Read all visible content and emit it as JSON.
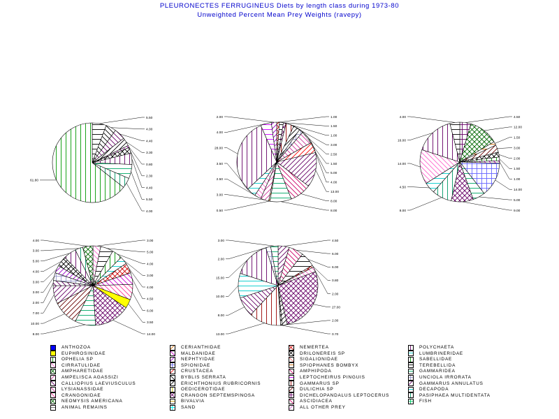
{
  "header": {
    "title": "PLEURONECTES FERRUGINEUS Diets by length class during 1973-80",
    "subtitle": "Unweighted Percent Mean Prey Weights (ravepy)"
  },
  "chart_data": {
    "type": "pie",
    "pies": [
      {
        "label": "",
        "slices": [
          {
            "cat": 15,
            "value": 5.5
          },
          {
            "cat": 21,
            "value": 4.0
          },
          {
            "cat": 24,
            "value": 4.4
          },
          {
            "cat": 25,
            "value": 3.3
          },
          {
            "cat": 5,
            "value": 0.8
          },
          {
            "cat": 6,
            "value": 2.3
          },
          {
            "cat": 3,
            "value": 4.4
          },
          {
            "cat": 19,
            "value": 5.5
          },
          {
            "cat": 35,
            "value": 4.0
          },
          {
            "cat": 8,
            "value": 61.8
          }
        ]
      },
      {
        "label": "",
        "slices": [
          {
            "cat": 2,
            "value": 1.0
          },
          {
            "cat": 15,
            "value": 1.5
          },
          {
            "cat": 33,
            "value": 1.0
          },
          {
            "cat": 26,
            "value": 3.0
          },
          {
            "cat": 25,
            "value": 2.5
          },
          {
            "cat": 23,
            "value": 1.5
          },
          {
            "cat": 28,
            "value": 5.0
          },
          {
            "cat": 17,
            "value": 4.0
          },
          {
            "cat": 27,
            "value": 13.0
          },
          {
            "cat": 18,
            "value": 8.0
          },
          {
            "cat": 19,
            "value": 8.0
          },
          {
            "cat": 1,
            "value": 0.5
          },
          {
            "cat": 20,
            "value": 3.0
          },
          {
            "cat": 12,
            "value": 2.5
          },
          {
            "cat": 31,
            "value": 3.5
          },
          {
            "cat": 3,
            "value": 28.0
          },
          {
            "cat": 22,
            "value": 4.0
          },
          {
            "cat": 9,
            "value": 2.0
          }
        ]
      },
      {
        "label": "",
        "slices": [
          {
            "cat": 34,
            "value": 4.5
          },
          {
            "cat": 16,
            "value": 12.0
          },
          {
            "cat": 14,
            "value": 1.5
          },
          {
            "cat": 30,
            "value": 3.0
          },
          {
            "cat": 6,
            "value": 2.0
          },
          {
            "cat": 11,
            "value": 1.5
          },
          {
            "cat": 5,
            "value": 1.0
          },
          {
            "cat": 13,
            "value": 14.0
          },
          {
            "cat": 19,
            "value": 5.0
          },
          {
            "cat": 33,
            "value": 9.0
          },
          {
            "cat": 35,
            "value": 8.0
          },
          {
            "cat": 31,
            "value": 4.5
          },
          {
            "cat": 12,
            "value": 14.0
          },
          {
            "cat": 3,
            "value": 16.0
          },
          {
            "cat": 15,
            "value": 4.0
          }
        ]
      },
      {
        "label": "",
        "slices": [
          {
            "cat": 12,
            "value": 3.0
          },
          {
            "cat": 15,
            "value": 5.0
          },
          {
            "cat": 11,
            "value": 4.0
          },
          {
            "cat": 31,
            "value": 3.0
          },
          {
            "cat": 2,
            "value": 4.0
          },
          {
            "cat": 5,
            "value": 4.5
          },
          {
            "cat": 32,
            "value": 6.0
          },
          {
            "cat": 4,
            "value": 3.5
          },
          {
            "cat": 33,
            "value": 14.0
          },
          {
            "cat": 19,
            "value": 8.0
          },
          {
            "cat": 30,
            "value": 10.0
          },
          {
            "cat": 27,
            "value": 7.0
          },
          {
            "cat": 24,
            "value": 2.0
          },
          {
            "cat": 23,
            "value": 3.0
          },
          {
            "cat": 9,
            "value": 3.0
          },
          {
            "cat": 6,
            "value": 4.0
          },
          {
            "cat": 3,
            "value": 5.0
          },
          {
            "cat": 35,
            "value": 3.0
          },
          {
            "cat": 16,
            "value": 4.0
          }
        ]
      },
      {
        "label": "",
        "slices": [
          {
            "cat": 27,
            "value": 4.5
          },
          {
            "cat": 18,
            "value": 6.0
          },
          {
            "cat": 15,
            "value": 6.0
          },
          {
            "cat": 2,
            "value": 0.8
          },
          {
            "cat": 12,
            "value": 2.0
          },
          {
            "cat": 33,
            "value": 27.0
          },
          {
            "cat": 25,
            "value": 2.0
          },
          {
            "cat": 6,
            "value": 0.7
          },
          {
            "cat": 26,
            "value": 13.0
          },
          {
            "cat": 24,
            "value": 8.0
          },
          {
            "cat": 7,
            "value": 10.0
          },
          {
            "cat": 3,
            "value": 15.0
          },
          {
            "cat": 23,
            "value": 2.0
          },
          {
            "cat": 19,
            "value": 3.0
          }
        ]
      }
    ],
    "legend": [
      "ANTHOZOA",
      "CERIANTHIDAE",
      "NEMERTEA",
      "POLYCHAETA",
      "EUPHROSINIDAE",
      "MALDANIDAE",
      "DRILONEREIS SP",
      "LUMBRINERIDAE",
      "OPHELIA SP",
      "NEPHTYIDAE",
      "SIGALIONIDAE",
      "SABELLIDAE",
      "CIRRATULIDAE",
      "SPIONIDAE",
      "SPIOPHANES BOMBYX",
      "TEREBELLIDA",
      "AMPHARETIDAE",
      "CRUSTACEA",
      "AMPHIPODA",
      "GAMMARIDEA",
      "AMPELISCA AGASSIZI",
      "BYBLIS SERRATA",
      "LEPTOCHEIRUS PINGUIS",
      "UNCIOLA IRRORATA",
      "CALLIOPIUS LAEVIUSCULUS",
      "ERICHTHONIUS RUBRICORNIS",
      "GAMMARUS SP",
      "GAMMARUS ANNULATUS",
      "LYSIANASSIDAE",
      "OEDICEROTIDAE",
      "DULICHIA SP",
      "DECAPODA",
      "CRANGONIDAE",
      "CRANGON SEPTEMSPINOSA",
      "DICHELOPANDALUS LEPTOCERUS",
      "PASIPHAEA MULTIDENTATA",
      "NEOMYSIS AMERICANA",
      "BIVALVIA",
      "ASCIDIACEA",
      "FISH",
      "ANIMAL REMAINS",
      "SAND",
      "ALL OTHER PREY"
    ],
    "legend_colors": [
      "#0000ff",
      "#cc6600",
      "#cc0000",
      "#660066",
      "#ffff00",
      "#cc00cc",
      "#000000",
      "#00cccc",
      "#009900",
      "#9900cc",
      "#ff6666",
      "#009900",
      "#ff66cc",
      "#6666ff",
      "#cc6600",
      "#000000",
      "#006600",
      "#ff0000",
      "#cc0066",
      "#00aa66",
      "#cc3399",
      "#000000",
      "#cc00ff",
      "#9999cc",
      "#660066",
      "#000000",
      "#990000",
      "#660066",
      "#cc3399",
      "#cccc00",
      "#660000",
      "#00cccc",
      "#ff3399",
      "#660066",
      "#660066",
      "#009966",
      "#006600",
      "#cc9900",
      "#cc0066",
      "#00cc66",
      "#666666",
      "#00ffff",
      "#cc66cc"
    ]
  }
}
